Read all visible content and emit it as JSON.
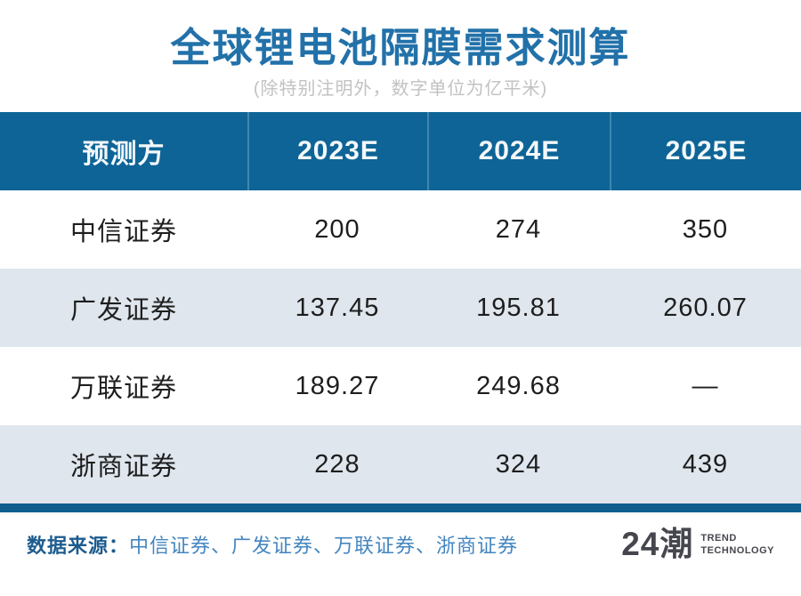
{
  "page": {
    "title": "全球锂电池隔膜需求测算",
    "subtitle": "(除特别注明外，数字单位为亿平米)"
  },
  "colors": {
    "title_blue": "#2271a9",
    "header_bg": "#0e6496",
    "row_alt_bg": "#dfe6ed",
    "bottom_bar": "#0d5e8d",
    "footer_label_blue": "#1d5b8e",
    "footer_sources_blue": "#4486c0",
    "logo_gray": "#46464e"
  },
  "table": {
    "columns": [
      "预测方",
      "2023E",
      "2024E",
      "2025E"
    ],
    "rows": [
      [
        "中信证券",
        "200",
        "274",
        "350"
      ],
      [
        "广发证券",
        "137.45",
        "195.81",
        "260.07"
      ],
      [
        "万联证券",
        "189.27",
        "249.68",
        "—"
      ],
      [
        "浙商证券",
        "228",
        "324",
        "439"
      ]
    ]
  },
  "footer": {
    "source_label": "数据来源：",
    "sources": "中信证券、广发证券、万联证券、浙商证券",
    "logo_text": "24潮",
    "logo_line1": "TREND",
    "logo_line2": "TECHNOLOGY"
  },
  "chart_data": {
    "type": "table",
    "title": "全球锂电池隔膜需求测算",
    "unit_note": "除特别注明外，数字单位为亿平米",
    "columns": [
      "预测方",
      "2023E",
      "2024E",
      "2025E"
    ],
    "series": [
      {
        "name": "中信证券",
        "values": [
          200,
          274,
          350
        ]
      },
      {
        "name": "广发证券",
        "values": [
          137.45,
          195.81,
          260.07
        ]
      },
      {
        "name": "万联证券",
        "values": [
          189.27,
          249.68,
          null
        ]
      },
      {
        "name": "浙商证券",
        "values": [
          228,
          324,
          439
        ]
      }
    ],
    "sources": [
      "中信证券",
      "广发证券",
      "万联证券",
      "浙商证券"
    ]
  }
}
